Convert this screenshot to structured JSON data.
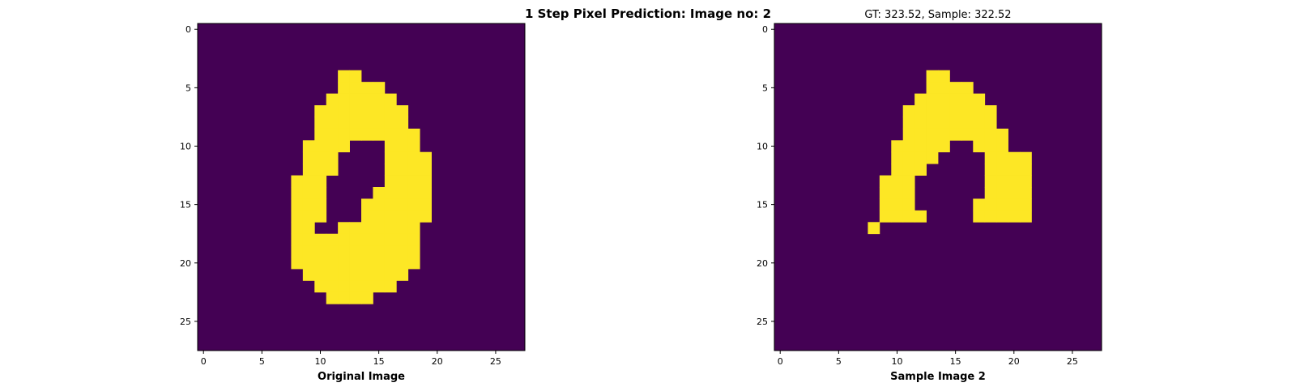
{
  "figure": {
    "title": "1 Step Pixel Prediction: Image no: 2"
  },
  "colors": {
    "background_pixel": "#440154",
    "foreground_pixel": "#fde725",
    "frame": "#000000"
  },
  "chart_data": [
    {
      "type": "heatmap",
      "title": "",
      "xlabel": "Original Image",
      "ylabel": "",
      "xlim": [
        -0.5,
        27.5
      ],
      "ylim": [
        27.5,
        -0.5
      ],
      "xticks": [
        0,
        5,
        10,
        15,
        20,
        25
      ],
      "yticks": [
        0,
        5,
        10,
        15,
        20,
        25
      ],
      "colormap": "viridis",
      "value_range": [
        0,
        1
      ],
      "rows": [
        "0000000000000000000000000000",
        "0000000000000000000000000000",
        "0000000000000000000000000000",
        "0000000000000000000000000000",
        "0000000000001100000000000000",
        "0000000000001111000000000000",
        "0000000000011111100000000000",
        "0000000000111111110000000000",
        "0000000000111111110000000000",
        "0000000000111111111000000000",
        "0000000001111000111000000000",
        "0000000001110000111100000000",
        "0000000001110000111100000000",
        "0000000011100000111100000000",
        "0000000011100001111100000000",
        "0000000011100011111100000000",
        "0000000011100011111100000000",
        "0000000011001111111000000000",
        "0000000011111111111000000000",
        "0000000011111111111000000000",
        "0000000011111111111000000000",
        "0000000001111111110000000000",
        "0000000000111111100000000000",
        "0000000000011110000000000000",
        "0000000000000000000000000000",
        "0000000000000000000000000000",
        "0000000000000000000000000000",
        "0000000000000000000000000000"
      ]
    },
    {
      "type": "heatmap",
      "title": "GT: 323.52, Sample: 322.52",
      "xlabel": "Sample Image 2",
      "ylabel": "",
      "xlim": [
        -0.5,
        27.5
      ],
      "ylim": [
        27.5,
        -0.5
      ],
      "xticks": [
        0,
        5,
        10,
        15,
        20,
        25
      ],
      "yticks": [
        0,
        5,
        10,
        15,
        20,
        25
      ],
      "colormap": "viridis",
      "value_range": [
        0,
        1
      ],
      "rows": [
        "0000000000000000000000000000",
        "0000000000000000000000000000",
        "0000000000000000000000000000",
        "0000000000000000000000000000",
        "0000000000000110000000000000",
        "0000000000000111100000000000",
        "0000000000001111110000000000",
        "0000000000011111111000000000",
        "0000000000011111111000000000",
        "0000000000011111111100000000",
        "0000000000111110011100000000",
        "0000000000111100001111000000",
        "0000000000111000001111000000",
        "0000000001110000001111000000",
        "0000000001110000001111000000",
        "0000000001110000011111000000",
        "0000000001111000011111000000",
        "0000000010000000000000000000",
        "0000000000000000000000000000",
        "0000000000000000000000000000",
        "0000000000000000000000000000",
        "0000000000000000000000000000",
        "0000000000000000000000000000",
        "0000000000000000000000000000",
        "0000000000000000000000000000",
        "0000000000000000000000000000",
        "0000000000000000000000000000",
        "0000000000000000000000000000"
      ]
    }
  ]
}
